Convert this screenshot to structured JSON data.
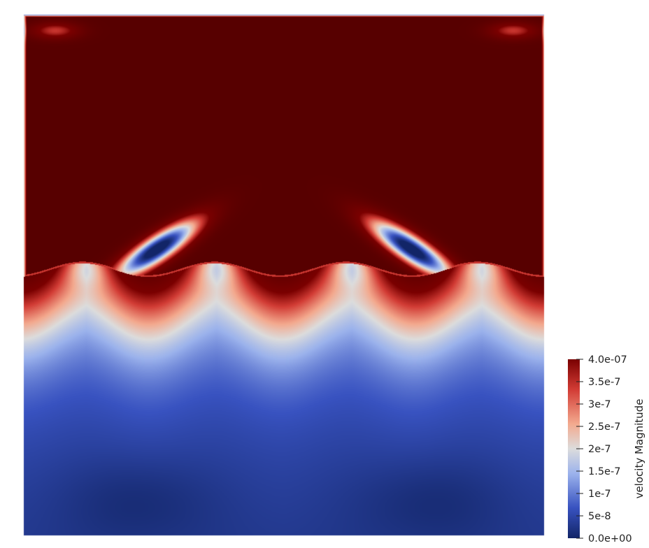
{
  "scalar_bar": {
    "title": "velocity Magnitude",
    "range": [
      0,
      4e-07
    ],
    "ticks": [
      {
        "value": 4e-07,
        "label": "4.0e-07"
      },
      {
        "value": 3.5e-07,
        "label": "3.5e-7"
      },
      {
        "value": 3e-07,
        "label": "3e-7"
      },
      {
        "value": 2.5e-07,
        "label": "2.5e-7"
      },
      {
        "value": 2e-07,
        "label": "2e-7"
      },
      {
        "value": 1.5e-07,
        "label": "1.5e-7"
      },
      {
        "value": 1e-07,
        "label": "1e-7"
      },
      {
        "value": 5e-08,
        "label": "5e-8"
      },
      {
        "value": 0,
        "label": "0.0e+00"
      }
    ],
    "colormap": [
      "#3b4cc0",
      "#dddddd",
      "#b40426"
    ],
    "colormap_stops": [
      "#122567",
      "#3852c0",
      "#9bb2ec",
      "#dcdcdc",
      "#f3a98e",
      "#d23c35",
      "#7a0000"
    ]
  },
  "colors": {
    "saturated_high": "#570000",
    "low": "#122567"
  }
}
